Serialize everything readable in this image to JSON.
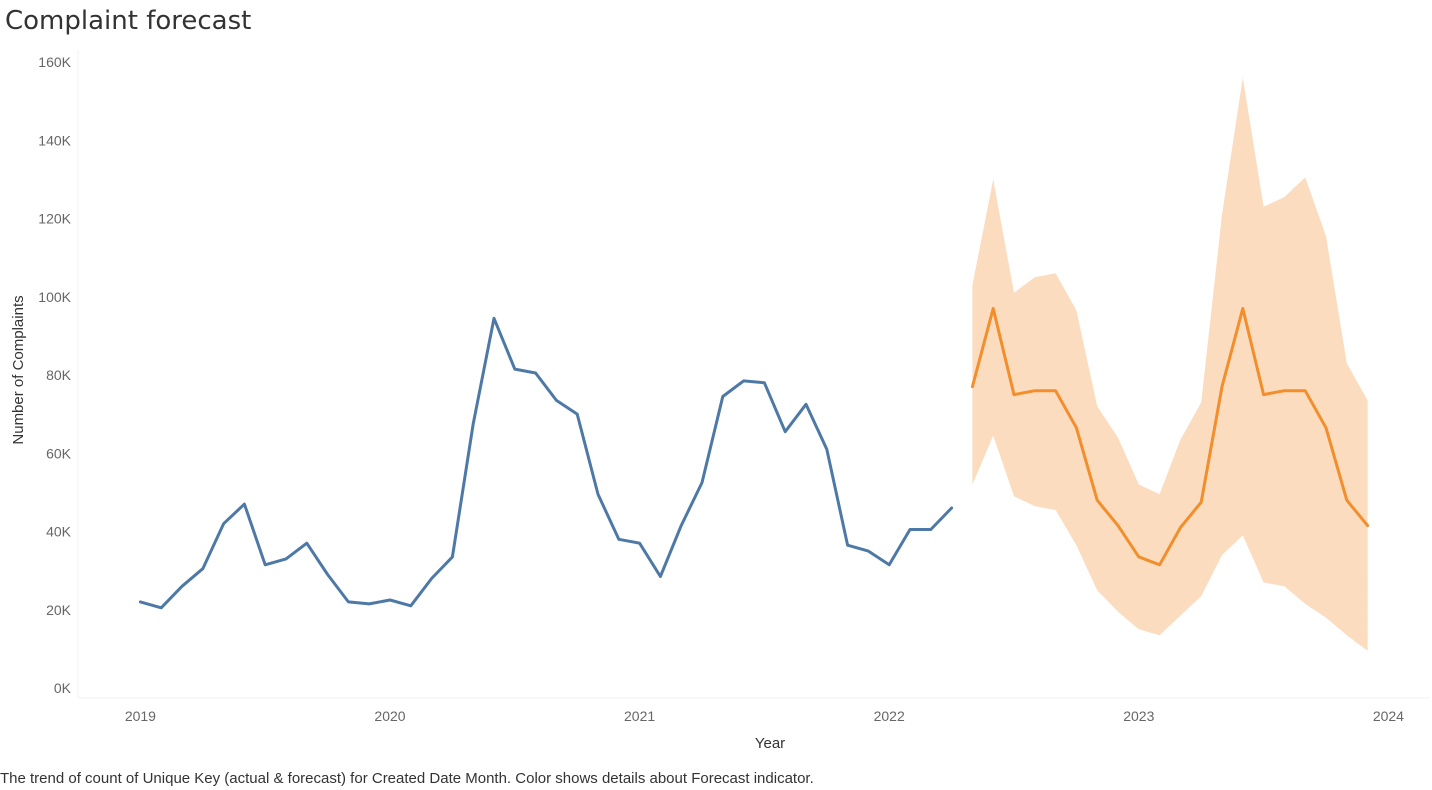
{
  "title": "Complaint forecast",
  "caption": "The trend of count of Unique Key (actual & forecast)  for Created Date Month.  Color shows details about Forecast indicator.",
  "colors": {
    "actual": "#4e79a7",
    "forecast": "#f28e2b",
    "band": "#fbdcbf"
  },
  "chart_data": {
    "type": "line",
    "xlabel": "Year",
    "ylabel": "Number of Complaints",
    "xlim": [
      "2018-10",
      "2024-03"
    ],
    "ylim": [
      0,
      160000
    ],
    "x_ticks": [
      "2019",
      "2020",
      "2021",
      "2022",
      "2023",
      "2024"
    ],
    "y_ticks": [
      "0K",
      "20K",
      "40K",
      "60K",
      "80K",
      "100K",
      "120K",
      "140K",
      "160K"
    ],
    "grid": false,
    "series": [
      {
        "key": "actual",
        "x": [
          "2019-01",
          "2019-02",
          "2019-03",
          "2019-04",
          "2019-05",
          "2019-06",
          "2019-07",
          "2019-08",
          "2019-09",
          "2019-10",
          "2019-11",
          "2019-12",
          "2020-01",
          "2020-02",
          "2020-03",
          "2020-04",
          "2020-05",
          "2020-06",
          "2020-07",
          "2020-08",
          "2020-09",
          "2020-10",
          "2020-11",
          "2020-12",
          "2021-01",
          "2021-02",
          "2021-03",
          "2021-04",
          "2021-05",
          "2021-06",
          "2021-07",
          "2021-08",
          "2021-09",
          "2021-10",
          "2021-11",
          "2021-12",
          "2022-01",
          "2022-02",
          "2022-03",
          "2022-04"
        ],
        "values": [
          22000,
          20500,
          26000,
          30500,
          42000,
          47000,
          31500,
          33000,
          37000,
          29000,
          22000,
          21500,
          22500,
          21000,
          28000,
          33500,
          67500,
          94500,
          81500,
          80500,
          73500,
          70000,
          49500,
          38000,
          37000,
          28500,
          41500,
          52500,
          74500,
          78500,
          78000,
          65500,
          72500,
          61000,
          36500,
          35000,
          31500,
          40500,
          40500,
          46000
        ]
      },
      {
        "key": "forecast",
        "x": [
          "2022-05",
          "2022-06",
          "2022-07",
          "2022-08",
          "2022-09",
          "2022-10",
          "2022-11",
          "2022-12",
          "2023-01",
          "2023-02",
          "2023-03",
          "2023-04",
          "2023-05",
          "2023-06",
          "2023-07",
          "2023-08",
          "2023-09",
          "2023-10",
          "2023-11",
          "2023-12"
        ],
        "values": [
          77000,
          97000,
          75000,
          76000,
          76000,
          66500,
          48000,
          41500,
          33500,
          31500,
          41000,
          47500,
          77000,
          97000,
          75000,
          76000,
          76000,
          66500,
          48000,
          41500
        ],
        "upper": [
          103000,
          130000,
          101000,
          105000,
          106000,
          96500,
          72000,
          64000,
          52000,
          49500,
          63500,
          73000,
          121000,
          156000,
          123000,
          125500,
          130500,
          115500,
          83000,
          73500
        ],
        "lower": [
          52000,
          64500,
          49000,
          46500,
          45500,
          36500,
          25000,
          19500,
          15000,
          13500,
          18500,
          23500,
          34000,
          39000,
          27000,
          26000,
          21500,
          18000,
          13500,
          9500
        ]
      }
    ]
  }
}
